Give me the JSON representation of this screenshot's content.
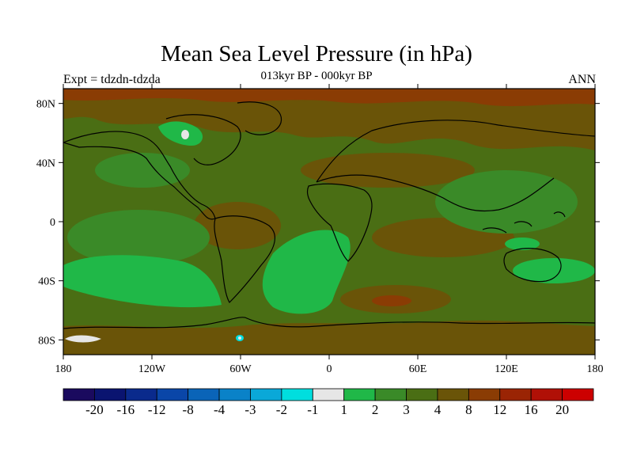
{
  "header": {
    "title": "Mean Sea Level Pressure (in hPa)",
    "subtitle": "013kyr BP - 000kyr BP",
    "left_label": "Expt = tdzdn-tdzda",
    "right_label": "ANN"
  },
  "map": {
    "lat_ticks": [
      "80N",
      "40N",
      "0",
      "40S",
      "80S"
    ],
    "lon_ticks": [
      "180",
      "120W",
      "60W",
      "0",
      "60E",
      "120E",
      "180"
    ]
  },
  "colorbar": {
    "colors": [
      "#1a0a5e",
      "#0a1470",
      "#0a2a8c",
      "#0a46a8",
      "#0a64b8",
      "#0a82c8",
      "#0aa8d8",
      "#00dede",
      "#e6e6e6",
      "#20b848",
      "#3a8a28",
      "#4a6e14",
      "#6a5408",
      "#8a3c04",
      "#9a2404",
      "#b01006",
      "#cc0000"
    ],
    "labels": [
      "-20",
      "-16",
      "-12",
      "-8",
      "-4",
      "-3",
      "-2",
      "-1",
      "1",
      "2",
      "3",
      "4",
      "8",
      "12",
      "16",
      "20"
    ]
  },
  "colors": {
    "base_field": "#4a6e14",
    "mid_positive": "#3a8a28",
    "high_positive": "#6a5408",
    "very_high": "#8a3c04",
    "low_positive": "#20b848",
    "white": "#e6e6e6",
    "cyan": "#00dede"
  }
}
